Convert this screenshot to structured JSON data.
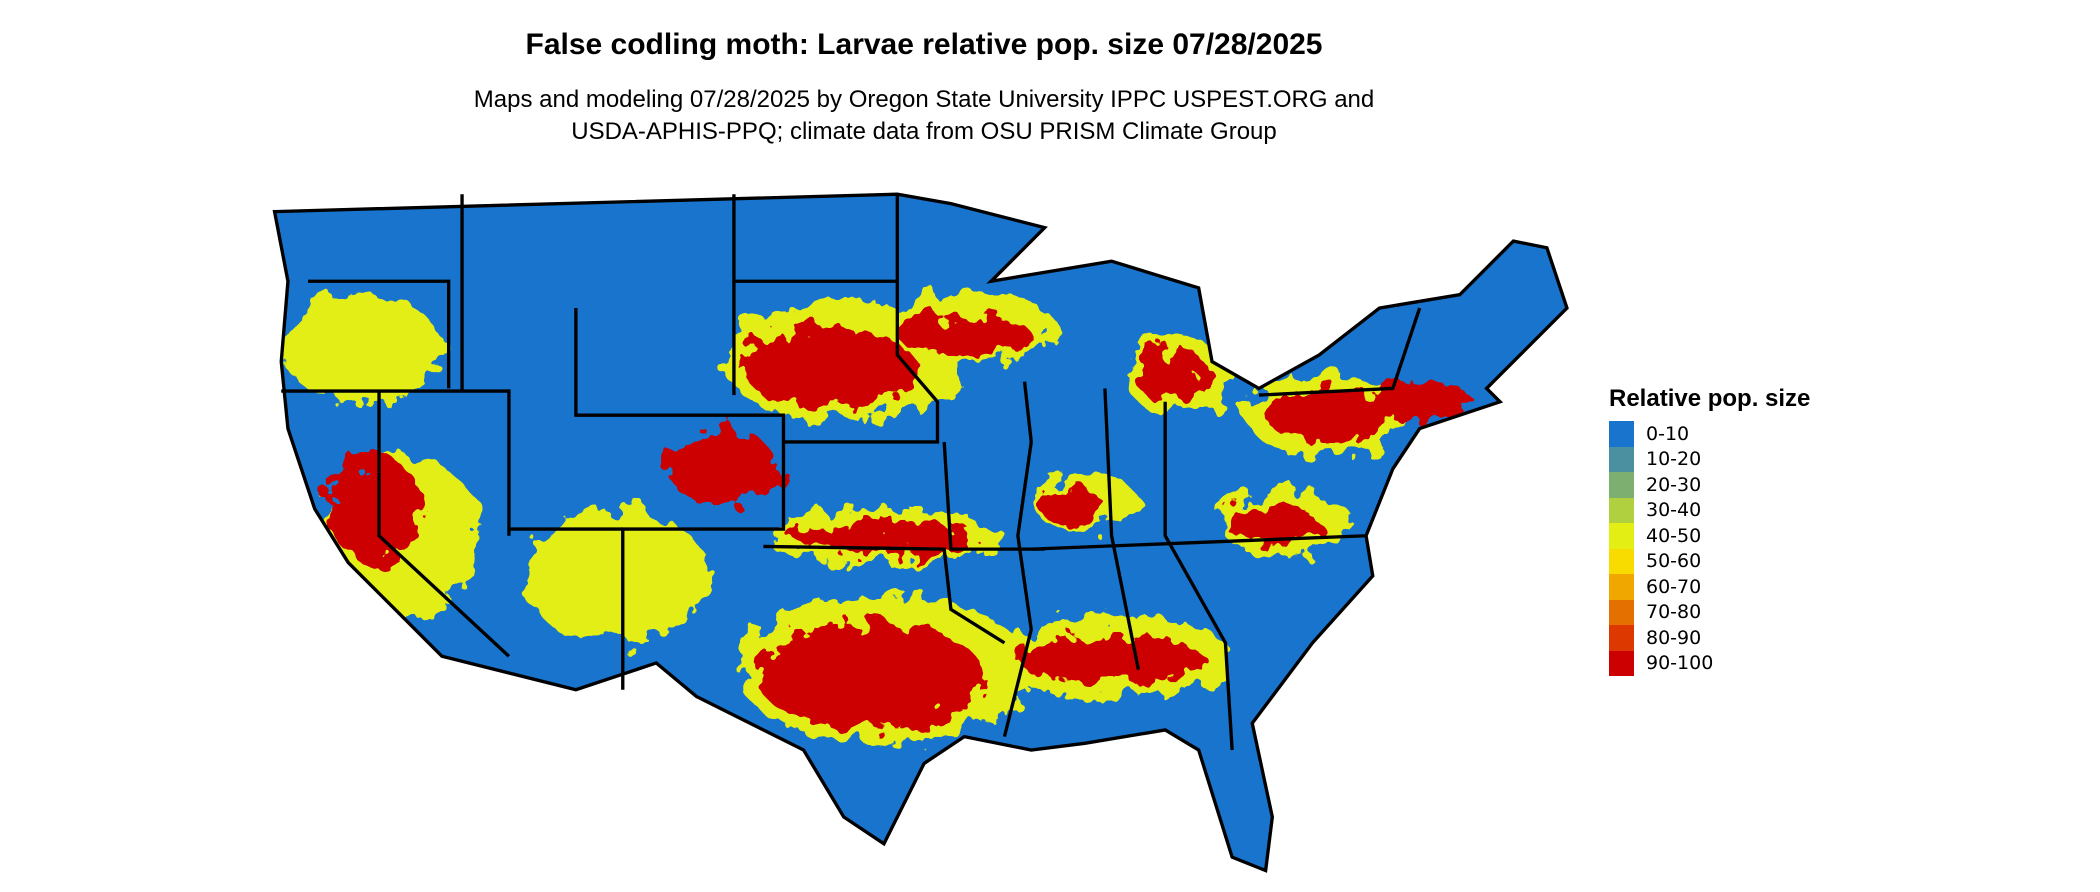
{
  "title": "False codling moth: Larvae relative pop. size 07/28/2025",
  "subtitle_line1": "Maps and modeling 07/28/2025 by Oregon State University IPPC USPEST.ORG and",
  "subtitle_line2": "USDA-APHIS-PPQ; climate data from OSU PRISM Climate Group",
  "legend": {
    "title": "Relative pop. size",
    "items": [
      {
        "label": "0-10",
        "color": "#1874cd"
      },
      {
        "label": "10-20",
        "color": "#4a90a0"
      },
      {
        "label": "20-30",
        "color": "#7db070"
      },
      {
        "label": "30-40",
        "color": "#b0d040"
      },
      {
        "label": "40-50",
        "color": "#e2ee14"
      },
      {
        "label": "50-60",
        "color": "#f8dc00"
      },
      {
        "label": "60-70",
        "color": "#f0a800"
      },
      {
        "label": "70-80",
        "color": "#e47000"
      },
      {
        "label": "80-90",
        "color": "#dc3800"
      },
      {
        "label": "90-100",
        "color": "#cc0000"
      }
    ]
  }
}
